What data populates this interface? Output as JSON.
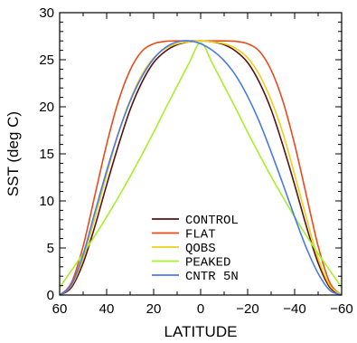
{
  "chart_data": {
    "type": "line",
    "xlabel": "LATITUDE",
    "ylabel": "SST (deg C)",
    "xlim": [
      60,
      -60
    ],
    "ylim": [
      0,
      30
    ],
    "x_ticks": [
      60,
      40,
      20,
      0,
      -20,
      -40,
      -60
    ],
    "x_tick_labels": [
      "60",
      "40",
      "20",
      "0",
      "−20",
      "−40",
      "−60"
    ],
    "y_ticks": [
      0,
      5,
      10,
      15,
      20,
      25,
      30
    ],
    "y_tick_labels": [
      "0",
      "5",
      "10",
      "15",
      "20",
      "25",
      "30"
    ],
    "legend_position": "lower-center",
    "series": [
      {
        "name": "CONTROL",
        "color": "#5a1010",
        "points": [
          [
            60,
            0
          ],
          [
            55,
            0.8
          ],
          [
            50,
            3.4
          ],
          [
            45,
            7.3
          ],
          [
            40,
            11.7
          ],
          [
            35,
            15.9
          ],
          [
            30,
            19.7
          ],
          [
            25,
            22.6
          ],
          [
            20,
            24.7
          ],
          [
            15,
            25.9
          ],
          [
            10,
            26.6
          ],
          [
            5,
            26.9
          ],
          [
            0,
            27
          ],
          [
            -5,
            26.9
          ],
          [
            -10,
            26.6
          ],
          [
            -15,
            25.9
          ],
          [
            -20,
            24.7
          ],
          [
            -25,
            22.6
          ],
          [
            -30,
            19.7
          ],
          [
            -35,
            15.9
          ],
          [
            -40,
            11.7
          ],
          [
            -45,
            7.3
          ],
          [
            -50,
            3.4
          ],
          [
            -55,
            0.8
          ],
          [
            -60,
            0
          ]
        ]
      },
      {
        "name": "FLAT",
        "color": "#e84a1a",
        "points": [
          [
            60,
            0
          ],
          [
            55,
            1.3
          ],
          [
            50,
            5.2
          ],
          [
            45,
            10.6
          ],
          [
            40,
            16
          ],
          [
            35,
            20.6
          ],
          [
            30,
            23.9
          ],
          [
            25,
            25.9
          ],
          [
            20,
            26.7
          ],
          [
            15,
            26.95
          ],
          [
            10,
            27
          ],
          [
            5,
            27
          ],
          [
            0,
            27
          ],
          [
            -5,
            27
          ],
          [
            -10,
            27
          ],
          [
            -15,
            26.95
          ],
          [
            -20,
            26.7
          ],
          [
            -25,
            25.9
          ],
          [
            -30,
            23.9
          ],
          [
            -35,
            20.6
          ],
          [
            -40,
            16
          ],
          [
            -45,
            10.6
          ],
          [
            -50,
            5.2
          ],
          [
            -55,
            1.3
          ],
          [
            -60,
            0
          ]
        ]
      },
      {
        "name": "QOBS",
        "color": "#e8d21a",
        "points": [
          [
            60,
            0
          ],
          [
            55,
            1
          ],
          [
            50,
            3.9
          ],
          [
            45,
            8.2
          ],
          [
            40,
            12.8
          ],
          [
            35,
            17.2
          ],
          [
            30,
            20.7
          ],
          [
            25,
            23.4
          ],
          [
            20,
            25.2
          ],
          [
            15,
            26.2
          ],
          [
            10,
            26.7
          ],
          [
            5,
            26.9
          ],
          [
            0,
            27
          ],
          [
            -5,
            26.9
          ],
          [
            -10,
            26.7
          ],
          [
            -15,
            26.2
          ],
          [
            -20,
            25.2
          ],
          [
            -25,
            23.4
          ],
          [
            -30,
            20.7
          ],
          [
            -35,
            17.2
          ],
          [
            -40,
            12.8
          ],
          [
            -45,
            8.2
          ],
          [
            -50,
            3.9
          ],
          [
            -55,
            1
          ],
          [
            -60,
            0
          ]
        ]
      },
      {
        "name": "PEAKED",
        "color": "#a6f02a",
        "points": [
          [
            60,
            0.8
          ],
          [
            55,
            2.6
          ],
          [
            50,
            4.4
          ],
          [
            45,
            6.3
          ],
          [
            40,
            8.3
          ],
          [
            35,
            10.4
          ],
          [
            30,
            12.6
          ],
          [
            25,
            14.9
          ],
          [
            20,
            17.3
          ],
          [
            15,
            19.8
          ],
          [
            10,
            22.2
          ],
          [
            5,
            24.6
          ],
          [
            0,
            26.8
          ],
          [
            -5,
            24.6
          ],
          [
            -10,
            22.2
          ],
          [
            -15,
            19.8
          ],
          [
            -20,
            17.3
          ],
          [
            -25,
            14.9
          ],
          [
            -30,
            12.6
          ],
          [
            -35,
            10.4
          ],
          [
            -40,
            8.3
          ],
          [
            -45,
            6.3
          ],
          [
            -50,
            4.4
          ],
          [
            -55,
            2.6
          ],
          [
            -60,
            0.8
          ]
        ]
      },
      {
        "name": "CNTR 5N",
        "color": "#4a78e8",
        "points": [
          [
            60,
            0
          ],
          [
            55,
            1.1
          ],
          [
            50,
            4.3
          ],
          [
            45,
            8.8
          ],
          [
            40,
            13.2
          ],
          [
            35,
            17.2
          ],
          [
            30,
            20.6
          ],
          [
            25,
            23.2
          ],
          [
            20,
            25.1
          ],
          [
            15,
            26.3
          ],
          [
            10,
            26.9
          ],
          [
            5,
            27
          ],
          [
            0,
            26.7
          ],
          [
            -5,
            26
          ],
          [
            -10,
            24.9
          ],
          [
            -15,
            23.3
          ],
          [
            -20,
            21.1
          ],
          [
            -25,
            18.4
          ],
          [
            -30,
            15.2
          ],
          [
            -35,
            11.8
          ],
          [
            -40,
            8.3
          ],
          [
            -45,
            5
          ],
          [
            -50,
            2.3
          ],
          [
            -55,
            0.5
          ],
          [
            -60,
            0
          ]
        ]
      }
    ]
  }
}
